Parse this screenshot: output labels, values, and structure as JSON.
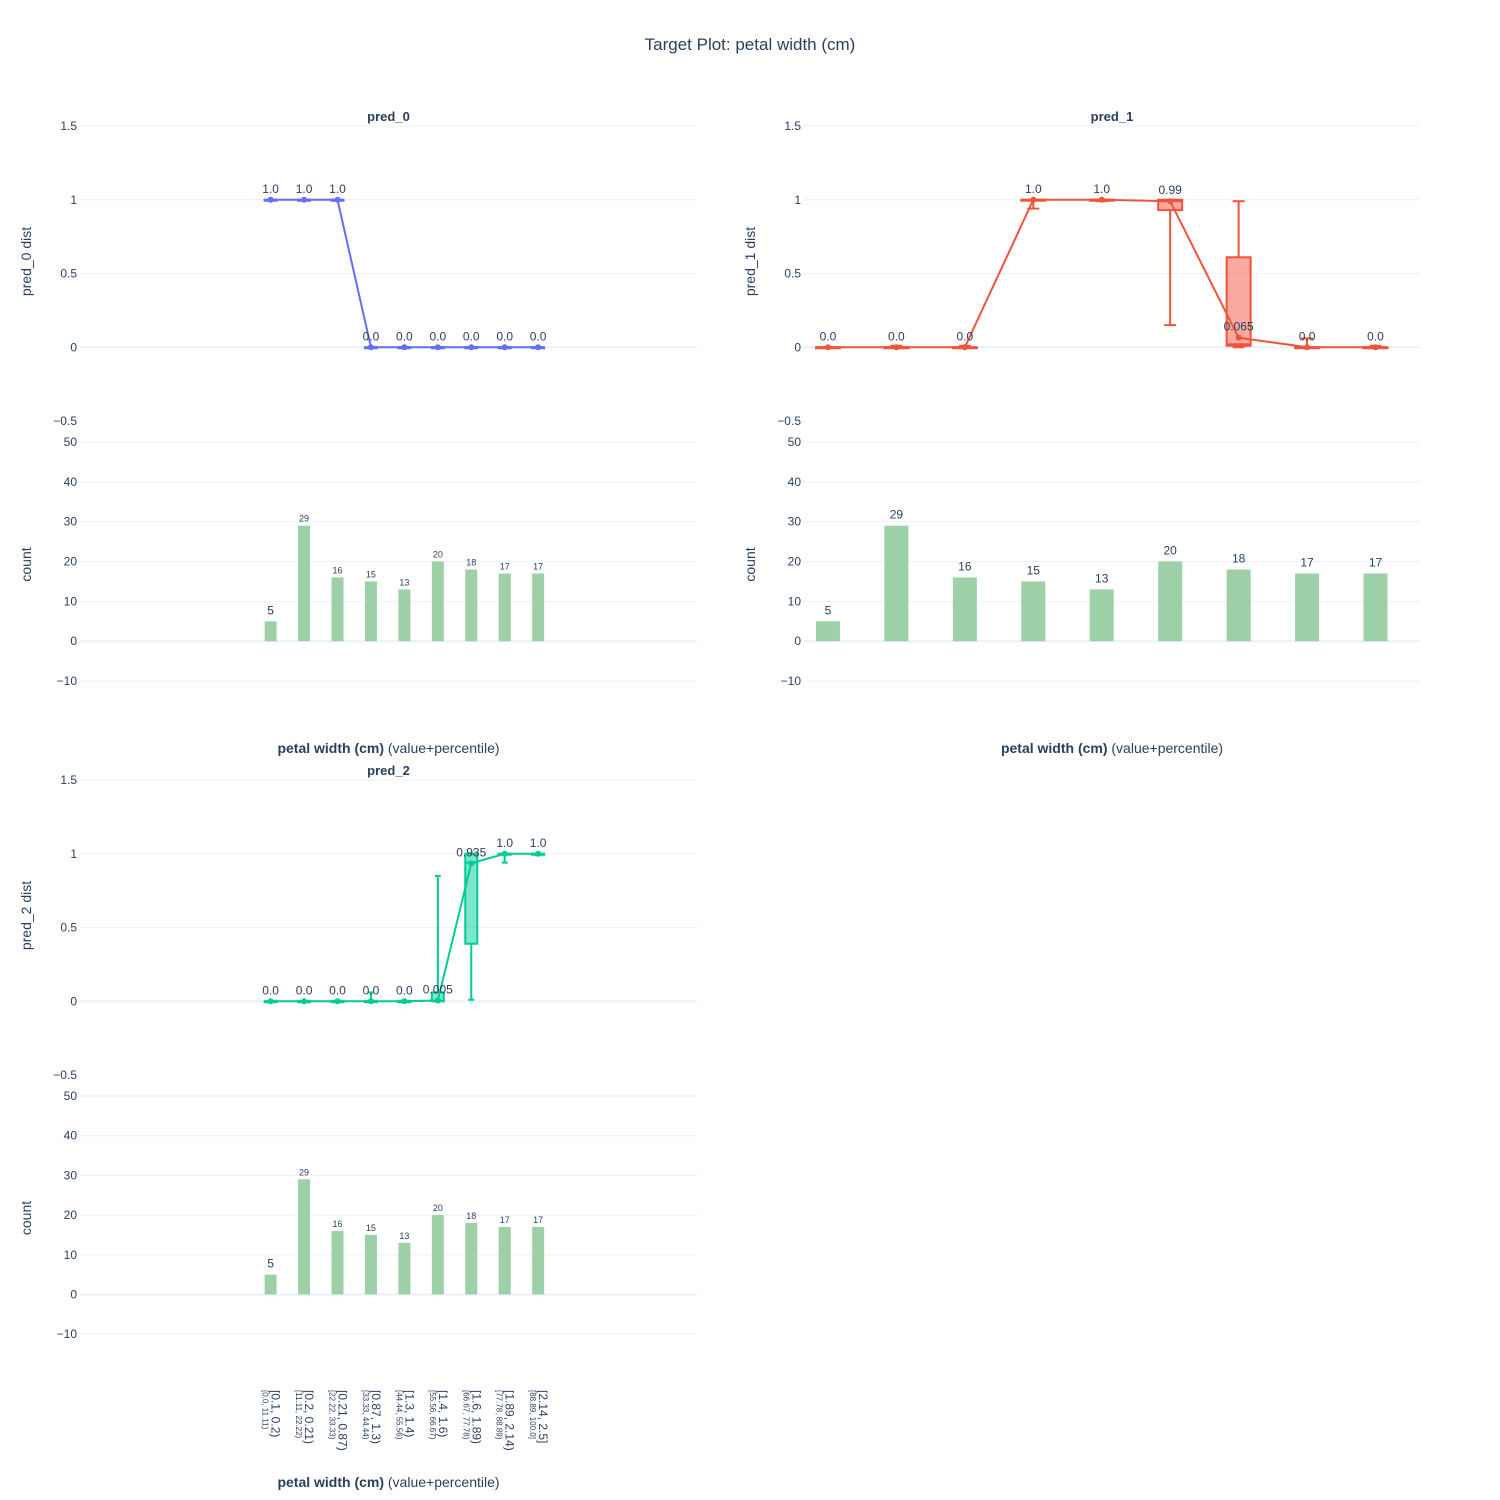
{
  "chart_data": {
    "type": "line+box+bar",
    "title": "Target Plot: petal width (cm)",
    "x_title_bold": "petal width (cm)",
    "x_title_suffix": " (value+percentile)",
    "categories": [
      "[0.1, 0.2)",
      "[0.2, 0.21)",
      "[0.21, 0.87)",
      "[0.87, 1.3)",
      "[1.3, 1.4)",
      "[1.4, 1.6)",
      "[1.6, 1.89)",
      "[1.89, 2.14)",
      "[2.14, 2.5]"
    ],
    "percentiles": [
      "[0.0, 11.11)",
      "[11.11, 22.22)",
      "[22.22, 33.33)",
      "[33.33, 44.44)",
      "[44.44, 55.56)",
      "[55.56, 66.67)",
      "[66.67, 77.78)",
      "[77.78, 88.89)",
      "[88.89, 100.0]"
    ],
    "counts": [
      5,
      29,
      16,
      15,
      13,
      20,
      18,
      17,
      17
    ],
    "count_labels": [
      "5",
      "29",
      "16",
      "15",
      "13",
      "20",
      "18",
      "17",
      "17"
    ],
    "dist_axis": {
      "ylim": [
        -0.5,
        1.5
      ],
      "ticks": [
        1.5,
        1,
        0.5,
        0,
        -0.5
      ],
      "tick_labels": [
        "1.5",
        "1",
        "0.5",
        "0",
        "−0.5"
      ]
    },
    "count_axis": {
      "ylim": [
        -14,
        50
      ],
      "ticks": [
        50,
        40,
        30,
        20,
        10,
        0,
        -10
      ],
      "tick_labels": [
        "50",
        "40",
        "30",
        "20",
        "10",
        "0",
        "−10"
      ]
    },
    "count_label": "count",
    "bar_color": "#9dd0a7",
    "panels": [
      {
        "name": "pred_0",
        "ylabel": "pred_0 dist",
        "color": "#636efa",
        "fill": "rgba(99,110,250,0.5)",
        "means": [
          1.0,
          1.0,
          1.0,
          0.0,
          0.0,
          0.0,
          0.0,
          0.0,
          0.0
        ],
        "mean_labels": [
          "1.0",
          "1.0",
          "1.0",
          "0.0",
          "0.0",
          "0.0",
          "0.0",
          "0.0",
          "0.0"
        ],
        "boxes": [
          {
            "min": 1,
            "q1": 1,
            "median": 1,
            "q3": 1,
            "max": 1
          },
          {
            "min": 1,
            "q1": 1,
            "median": 1,
            "q3": 1,
            "max": 1
          },
          {
            "min": 1,
            "q1": 1,
            "median": 1,
            "q3": 1,
            "max": 1
          },
          {
            "min": 0,
            "q1": 0,
            "median": 0,
            "q3": 0,
            "max": 0
          },
          {
            "min": 0,
            "q1": 0,
            "median": 0,
            "q3": 0,
            "max": 0
          },
          {
            "min": 0,
            "q1": 0,
            "median": 0,
            "q3": 0,
            "max": 0
          },
          {
            "min": 0,
            "q1": 0,
            "median": 0,
            "q3": 0,
            "max": 0
          },
          {
            "min": 0,
            "q1": 0,
            "median": 0,
            "q3": 0,
            "max": 0
          },
          {
            "min": 0,
            "q1": 0,
            "median": 0,
            "q3": 0,
            "max": 0
          }
        ],
        "x_range": [
          -5.7,
          12.75
        ]
      },
      {
        "name": "pred_1",
        "ylabel": "pred_1 dist",
        "color": "#ef553b",
        "fill": "rgba(239,85,59,0.5)",
        "means": [
          0.0,
          0.0,
          0.0,
          1.0,
          1.0,
          0.99,
          0.065,
          0.0,
          0.0
        ],
        "mean_labels": [
          "0.0",
          "0.0",
          "0.0",
          "1.0",
          "1.0",
          "0.99",
          "0.065",
          "0.0",
          "0.0"
        ],
        "boxes": [
          {
            "min": 0,
            "q1": 0,
            "median": 0,
            "q3": 0,
            "max": 0
          },
          {
            "min": 0,
            "q1": 0,
            "median": 0,
            "q3": 0,
            "max": 0.01
          },
          {
            "min": 0,
            "q1": 0,
            "median": 0,
            "q3": 0,
            "max": 0.01
          },
          {
            "min": 0.94,
            "q1": 1,
            "median": 1,
            "q3": 1,
            "max": 1
          },
          {
            "min": 0.99,
            "q1": 1,
            "median": 1,
            "q3": 1,
            "max": 1
          },
          {
            "min": 0.15,
            "q1": 0.93,
            "median": 0.99,
            "q3": 1,
            "max": 1
          },
          {
            "min": 0,
            "q1": 0.01,
            "median": 0.02,
            "q3": 0.61,
            "max": 0.99
          },
          {
            "min": 0,
            "q1": 0,
            "median": 0,
            "q3": 0,
            "max": 0.06
          },
          {
            "min": 0,
            "q1": 0,
            "median": 0,
            "q3": 0,
            "max": 0.01
          }
        ],
        "x_range": [
          -0.35,
          8.65
        ]
      },
      {
        "name": "pred_2",
        "ylabel": "pred_2 dist",
        "color": "#00cc96",
        "fill": "rgba(0,204,150,0.5)",
        "means": [
          0.0,
          0.0,
          0.0,
          0.0,
          0.0,
          0.005,
          0.935,
          1.0,
          1.0
        ],
        "mean_labels": [
          "0.0",
          "0.0",
          "0.0",
          "0.0",
          "0.0",
          "0.005",
          "0.935",
          "1.0",
          "1.0"
        ],
        "boxes": [
          {
            "min": 0,
            "q1": 0,
            "median": 0,
            "q3": 0,
            "max": 0
          },
          {
            "min": 0,
            "q1": 0,
            "median": 0,
            "q3": 0,
            "max": 0
          },
          {
            "min": 0,
            "q1": 0,
            "median": 0,
            "q3": 0,
            "max": 0
          },
          {
            "min": 0,
            "q1": 0,
            "median": 0,
            "q3": 0,
            "max": 0.06
          },
          {
            "min": 0,
            "q1": 0,
            "median": 0,
            "q3": 0,
            "max": 0
          },
          {
            "min": 0,
            "q1": 0,
            "median": 0,
            "q3": 0.06,
            "max": 0.85
          },
          {
            "min": 0.01,
            "q1": 0.39,
            "median": 0.94,
            "q3": 1,
            "max": 1
          },
          {
            "min": 0.94,
            "q1": 1,
            "median": 1,
            "q3": 1,
            "max": 1
          },
          {
            "min": 0.99,
            "q1": 1,
            "median": 1,
            "q3": 1,
            "max": 1
          }
        ],
        "x_range": [
          -5.7,
          12.75
        ]
      }
    ]
  }
}
